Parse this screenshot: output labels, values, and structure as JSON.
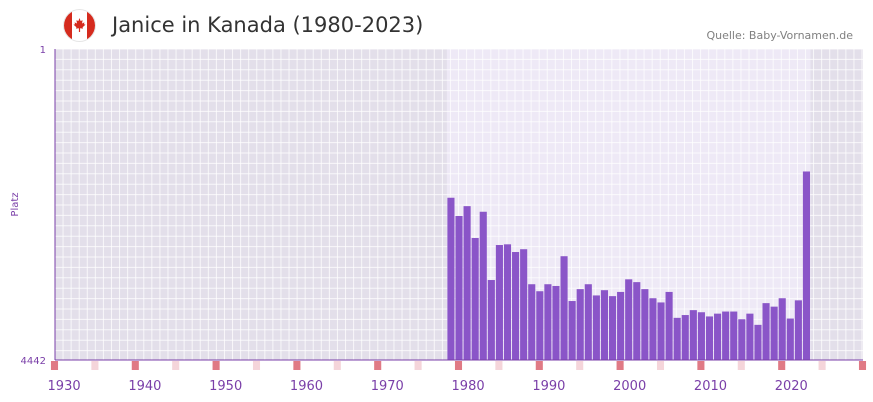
{
  "header": {
    "title": "Janice in Kanada (1980-2023)",
    "source": "Quelle: Baby-Vornamen.de",
    "flag_icon": "canada-flag-icon"
  },
  "colors": {
    "bar": "#8a55c8",
    "plot_bg_outer": "#e3dfea",
    "plot_bg_inner": "#eee9f6",
    "axis": "#7a3fa8",
    "marker_strong": "#e07a85",
    "marker_light": "#f5d5da"
  },
  "chart_data": {
    "type": "bar",
    "title": "Janice in Kanada (1980-2023)",
    "ylabel": "Platz",
    "y_reversed": true,
    "ylim": [
      1,
      4442
    ],
    "y_ticks": [
      1,
      4442
    ],
    "xlim": [
      1929,
      2029
    ],
    "x_ticks": [
      1930,
      1940,
      1950,
      1960,
      1970,
      1980,
      1990,
      2000,
      2010,
      2020
    ],
    "highlight_range": [
      1978,
      2022
    ],
    "x": [
      1978,
      1979,
      1980,
      1981,
      1982,
      1983,
      1984,
      1985,
      1986,
      1987,
      1988,
      1989,
      1990,
      1991,
      1992,
      1993,
      1994,
      1995,
      1996,
      1997,
      1998,
      1999,
      2000,
      2001,
      2002,
      2003,
      2004,
      2005,
      2006,
      2007,
      2008,
      2009,
      2010,
      2011,
      2012,
      2013,
      2014,
      2015,
      2016,
      2017,
      2018,
      2019,
      2020,
      2021,
      2022
    ],
    "values": [
      2125,
      2385,
      2245,
      2700,
      2325,
      3300,
      2800,
      2790,
      2900,
      2860,
      3360,
      3460,
      3360,
      3385,
      2960,
      3600,
      3430,
      3360,
      3520,
      3445,
      3530,
      3470,
      3290,
      3330,
      3430,
      3560,
      3620,
      3470,
      3840,
      3800,
      3730,
      3760,
      3820,
      3780,
      3750,
      3750,
      3860,
      3780,
      3940,
      3630,
      3680,
      3560,
      3850,
      3590,
      1750
    ],
    "axis_markers_strong": [
      1929,
      1939,
      1949,
      1959,
      1969,
      1979,
      1989,
      1999,
      2009,
      2019,
      2029
    ],
    "axis_markers_light": [
      1934,
      1944,
      1954,
      1964,
      1974,
      1984,
      1994,
      2004,
      2014,
      2024
    ]
  }
}
